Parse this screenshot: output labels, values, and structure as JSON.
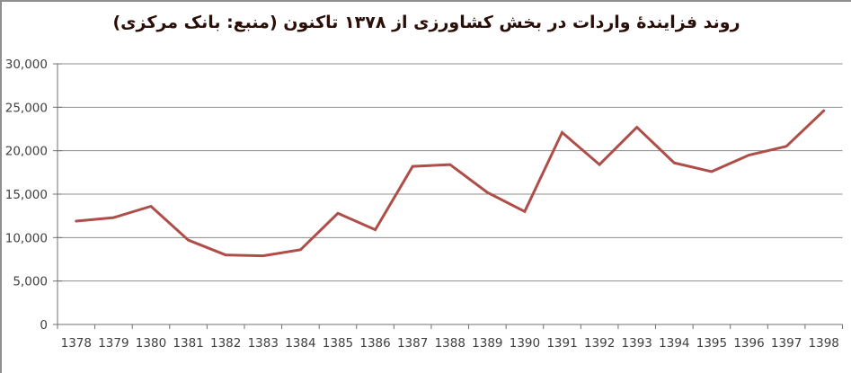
{
  "frame": {
    "background": "#ffffff",
    "border_color": "#8f8f8f"
  },
  "chart_data": {
    "type": "line",
    "title": "روند فزایندهٔ واردات در بخش کشاورزی از ۱۳۷۸ تاکنون (منبع: بانک مرکزی)",
    "x": [
      "1378",
      "1379",
      "1380",
      "1381",
      "1382",
      "1383",
      "1384",
      "1385",
      "1386",
      "1387",
      "1388",
      "1389",
      "1390",
      "1391",
      "1392",
      "1393",
      "1394",
      "1395",
      "1396",
      "1397",
      "1398"
    ],
    "values": [
      11900,
      12300,
      13600,
      9700,
      8000,
      7900,
      8600,
      12800,
      10900,
      18200,
      18400,
      15200,
      13000,
      22100,
      18400,
      22700,
      18600,
      17600,
      19500,
      20500,
      24600
    ],
    "xlabel": "",
    "ylabel": "",
    "ylim": [
      0,
      30000
    ],
    "ytick_step": 5000,
    "ytick_labels": [
      "0",
      "5,000",
      "10,000",
      "15,000",
      "20,000",
      "25,000",
      "30,000"
    ],
    "grid": true,
    "legend": "none",
    "style": {
      "line_color": "#AF4E48",
      "line_width": 3,
      "gridline_color": "#8c8c8c",
      "axis_color": "#707070",
      "tick_color": "#707070",
      "tick_label_color": "#3f3f3f",
      "title_color": "#2a0f08",
      "tick_label_font_size": 13.5
    }
  }
}
